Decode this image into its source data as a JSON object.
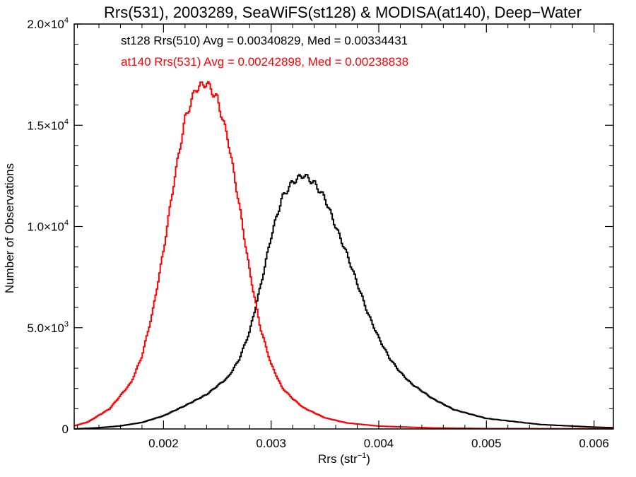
{
  "chart_data": {
    "type": "line",
    "title": "Rrs(531), 2003289, SeaWiFS(st128) & MODISA(at140), Deep−Water",
    "xlabel": "Rrs (str",
    "xlabel_sup": "−1",
    "xlabel_close": ")",
    "ylabel": "Number of Observations",
    "xlim": [
      0.00117,
      0.00618
    ],
    "ylim": [
      0,
      20000
    ],
    "grid": false,
    "x_ticks": [
      0.002,
      0.003,
      0.004,
      0.005,
      0.006
    ],
    "x_tick_labels": [
      "0.002",
      "0.003",
      "0.004",
      "0.005",
      "0.006"
    ],
    "y_ticks": [
      {
        "value": 0,
        "mantissa": "0",
        "exp": ""
      },
      {
        "value": 5000,
        "mantissa": "5.0×10",
        "exp": "3"
      },
      {
        "value": 10000,
        "mantissa": "1.0×10",
        "exp": "4"
      },
      {
        "value": 15000,
        "mantissa": "1.5×10",
        "exp": "4"
      },
      {
        "value": 20000,
        "mantissa": "2.0×10",
        "exp": "4"
      }
    ],
    "series": [
      {
        "name": "st128 Rrs(510)",
        "color": "#000000",
        "label": "st128 Rrs(510) Avg = 0.00340829, Med = 0.00334431",
        "x": [
          0.00117,
          0.0014,
          0.0016,
          0.0018,
          0.002,
          0.0022,
          0.0024,
          0.0026,
          0.0027,
          0.0028,
          0.0029,
          0.003,
          0.0031,
          0.0032,
          0.0033,
          0.0034,
          0.0035,
          0.0036,
          0.0037,
          0.0038,
          0.0039,
          0.004,
          0.0041,
          0.0042,
          0.0043,
          0.0045,
          0.0047,
          0.005,
          0.0055,
          0.006,
          0.00618
        ],
        "y": [
          0,
          60,
          150,
          320,
          650,
          1150,
          1700,
          2550,
          3400,
          4800,
          7000,
          9500,
          11400,
          12200,
          12550,
          12150,
          11400,
          10000,
          8700,
          7200,
          5700,
          4500,
          3500,
          2800,
          2250,
          1500,
          950,
          520,
          220,
          90,
          60
        ]
      },
      {
        "name": "at140 Rrs(531)",
        "color": "#ff0000",
        "label": "at140 Rrs(531) Avg = 0.00242898, Med = 0.00238838",
        "x": [
          0.00117,
          0.0013,
          0.0015,
          0.0017,
          0.0018,
          0.0019,
          0.002,
          0.0021,
          0.0022,
          0.0023,
          0.0024,
          0.0025,
          0.0026,
          0.0027,
          0.0028,
          0.0029,
          0.003,
          0.0031,
          0.0032,
          0.0033,
          0.0035,
          0.0037,
          0.004,
          0.0045,
          0.005,
          0.006,
          0.00618
        ],
        "y": [
          150,
          350,
          1000,
          2300,
          3600,
          5800,
          8800,
          12300,
          15300,
          16800,
          17100,
          16300,
          14300,
          11200,
          7800,
          5000,
          3200,
          2050,
          1500,
          1050,
          550,
          300,
          140,
          50,
          20,
          10,
          8
        ]
      }
    ]
  }
}
